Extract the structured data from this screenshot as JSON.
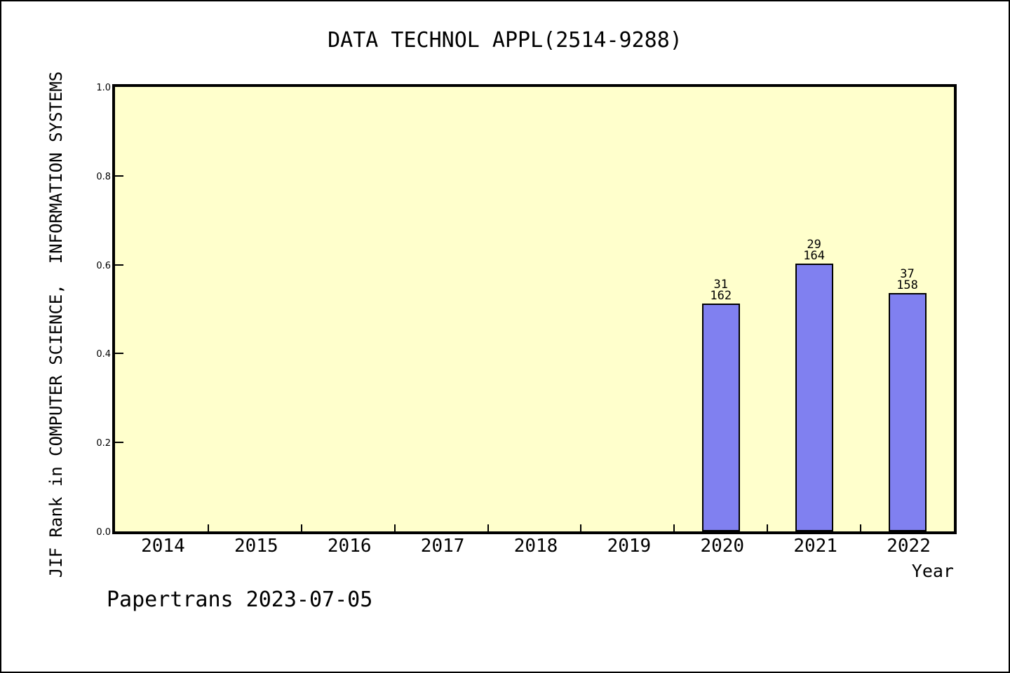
{
  "page": {
    "title": "DATA TECHNOL APPL(2514-9288)",
    "footer": "Papertrans 2023-07-05"
  },
  "chart_data": {
    "type": "bar",
    "title": "DATA TECHNOL APPL(2514-9288)",
    "xlabel": "Year",
    "ylabel": "JIF Rank in COMPUTER SCIENCE,  INFORMATION SYSTEMS",
    "categories": [
      "2014",
      "2015",
      "2016",
      "2017",
      "2018",
      "2019",
      "2020",
      "2021",
      "2022"
    ],
    "ylim": [
      0.0,
      1.0
    ],
    "yticks": [
      0.0,
      0.2,
      0.4,
      0.6,
      0.8,
      1.0
    ],
    "ytick_labels": [
      "0.0",
      "0.2",
      "0.4",
      "0.6",
      "0.8",
      "1.0"
    ],
    "grid": false,
    "legend": false,
    "series": [
      {
        "name": "JIF Rank",
        "values": [
          null,
          null,
          null,
          null,
          null,
          null,
          0.513,
          0.603,
          0.537
        ]
      }
    ],
    "bars": [
      {
        "category": "2020",
        "value": 0.513,
        "rank": "31",
        "total": "162"
      },
      {
        "category": "2021",
        "value": 0.603,
        "rank": "29",
        "total": "164"
      },
      {
        "category": "2022",
        "value": 0.537,
        "rank": "37",
        "total": "158"
      }
    ],
    "colors": {
      "plot_bg": "#FFFFCC",
      "bar_fill": "#8080F0",
      "bar_border": "#000000",
      "axis": "#000000",
      "figure_bg": "#FFFFFF"
    }
  }
}
